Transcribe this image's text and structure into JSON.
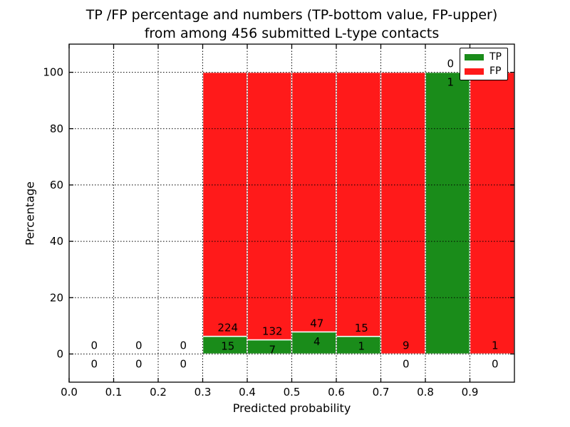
{
  "title": {
    "line1": "TP /FP percentage and numbers (TP-bottom value, FP-upper)",
    "line2": "from among 456 submitted L-type contacts"
  },
  "axes": {
    "xlabel": "Predicted probability",
    "ylabel": "Percentage",
    "x_tick_labels": [
      "0.0",
      "0.1",
      "0.2",
      "0.3",
      "0.4",
      "0.5",
      "0.6",
      "0.7",
      "0.8",
      "0.9"
    ],
    "y_tick_labels": [
      "0",
      "20",
      "40",
      "60",
      "80",
      "100"
    ]
  },
  "legend": {
    "position": "upper right",
    "items": [
      {
        "label": "TP",
        "color": "#1a8c1a"
      },
      {
        "label": "FP",
        "color": "#ff1a1a"
      }
    ]
  },
  "chart_data": {
    "type": "bar",
    "stacked": true,
    "title": "TP /FP percentage and numbers (TP-bottom value, FP-upper) from among 456 submitted L-type contacts",
    "xlabel": "Predicted probability",
    "ylabel": "Percentage",
    "xlim": [
      0.0,
      1.0
    ],
    "ylim": [
      -10,
      110
    ],
    "grid": "dotted",
    "legend_position": "upper right",
    "total_contacts": 456,
    "bin_width": 0.1,
    "bin_edges": [
      0.0,
      0.1,
      0.2,
      0.3,
      0.4,
      0.5,
      0.6,
      0.7,
      0.8,
      0.9,
      1.0
    ],
    "series": [
      {
        "name": "TP",
        "color": "#1a8c1a",
        "counts": [
          0,
          0,
          0,
          15,
          7,
          4,
          1,
          0,
          1,
          0
        ]
      },
      {
        "name": "FP",
        "color": "#ff1a1a",
        "counts": [
          0,
          0,
          0,
          224,
          132,
          47,
          15,
          9,
          0,
          1
        ]
      }
    ],
    "tp_percent": [
      0,
      0,
      0,
      6.3,
      5.0,
      7.8,
      6.3,
      0,
      100,
      0
    ],
    "fp_percent": [
      0,
      0,
      0,
      93.7,
      95.0,
      92.2,
      93.7,
      100,
      0,
      100
    ]
  }
}
